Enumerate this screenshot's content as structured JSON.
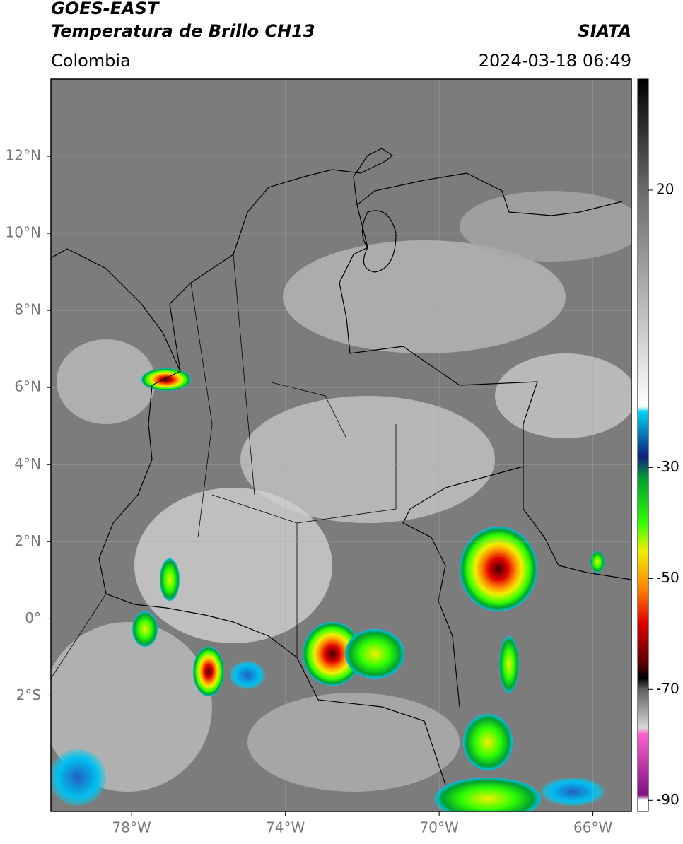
{
  "header": {
    "title": "GOES-EAST",
    "subtitle": "Temperatura de Brillo CH13",
    "source": "SIATA",
    "region": "Colombia",
    "timestamp": "2024-03-18 06:49"
  },
  "map": {
    "xlim": [
      -80.1,
      -65.0
    ],
    "ylim": [
      -5.0,
      14.0
    ],
    "xticks": [
      {
        "value": -78,
        "label": "78°W"
      },
      {
        "value": -74,
        "label": "74°W"
      },
      {
        "value": -70,
        "label": "70°W"
      },
      {
        "value": -66,
        "label": "66°W"
      }
    ],
    "yticks": [
      {
        "value": 12,
        "label": "12°N"
      },
      {
        "value": 10,
        "label": "10°N"
      },
      {
        "value": 8,
        "label": "8°N"
      },
      {
        "value": 6,
        "label": "6°N"
      },
      {
        "value": 4,
        "label": "4°N"
      },
      {
        "value": 2,
        "label": "2°N"
      },
      {
        "value": 0,
        "label": "0°"
      },
      {
        "value": -2,
        "label": "2°S"
      }
    ],
    "grid": true
  },
  "colorbar": {
    "lim": [
      -92,
      40
    ],
    "ticks": [
      20,
      -30,
      -50,
      -70,
      -90
    ],
    "stops": [
      {
        "value": 40,
        "color": "#000000"
      },
      {
        "value": 20,
        "color": "#6a6a6a"
      },
      {
        "value": -19,
        "color": "#ffffff"
      },
      {
        "value": -20,
        "color": "#00d0f0"
      },
      {
        "value": -28,
        "color": "#102080"
      },
      {
        "value": -32,
        "color": "#00a030"
      },
      {
        "value": -40,
        "color": "#30ff00"
      },
      {
        "value": -45,
        "color": "#f0f000"
      },
      {
        "value": -52,
        "color": "#ff8000"
      },
      {
        "value": -58,
        "color": "#e00000"
      },
      {
        "value": -65,
        "color": "#600000"
      },
      {
        "value": -68,
        "color": "#000000"
      },
      {
        "value": -70,
        "color": "#606060"
      },
      {
        "value": -77,
        "color": "#d8d8d8"
      },
      {
        "value": -78,
        "color": "#ff60d0"
      },
      {
        "value": -89,
        "color": "#801080"
      },
      {
        "value": -90,
        "color": "#ffffff"
      }
    ]
  }
}
